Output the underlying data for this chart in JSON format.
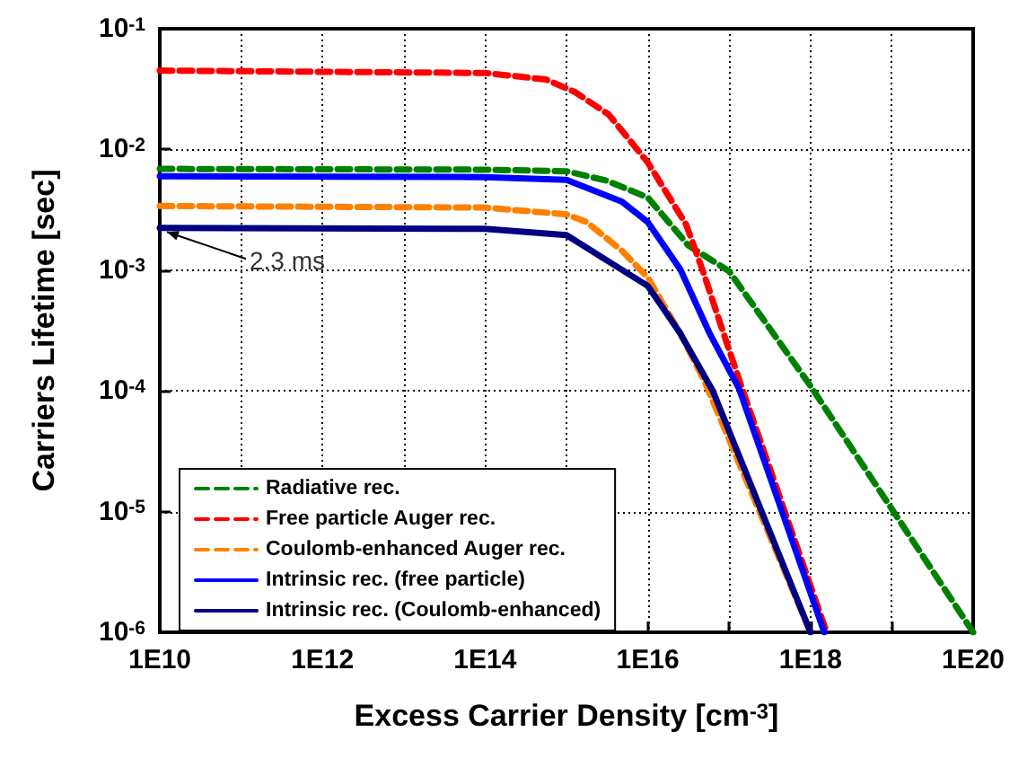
{
  "chart_data": {
    "type": "line",
    "xlabel": "Excess Carrier Density [cm$^{-3}$]",
    "ylabel": "Carriers Lifetime [sec]",
    "log": "xy",
    "xlim": [
      10000000000.0,
      1e+20
    ],
    "ylim": [
      1e-06,
      0.1
    ],
    "xticks": [
      {
        "value": 10000000000.0,
        "label": "1E10"
      },
      {
        "value": 100000000000.0,
        "label": null
      },
      {
        "value": 1000000000000.0,
        "label": "1E12"
      },
      {
        "value": 10000000000000.0,
        "label": null
      },
      {
        "value": 100000000000000.0,
        "label": "1E14"
      },
      {
        "value": 1000000000000000.0,
        "label": null
      },
      {
        "value": 1e+16,
        "label": "1E16"
      },
      {
        "value": 1e+17,
        "label": null
      },
      {
        "value": 1e+18,
        "label": "1E18"
      },
      {
        "value": 1e+19,
        "label": null
      },
      {
        "value": 1e+20,
        "label": "1E20"
      }
    ],
    "yticks": [
      {
        "value": 1e-06,
        "label": "10$^{-6}$"
      },
      {
        "value": 1e-05,
        "label": "10$^{-5}$"
      },
      {
        "value": 0.0001,
        "label": "10$^{-4}$"
      },
      {
        "value": 0.001,
        "label": "10$^{-3}$"
      },
      {
        "value": 0.01,
        "label": "10$^{-2}$"
      },
      {
        "value": 0.1,
        "label": "10$^{-1}$"
      }
    ],
    "grid": true,
    "legend": "bottom left",
    "marker": "none",
    "annotations": [
      {
        "text": "2.3 ms",
        "y": 0.0023
      }
    ],
    "series": [
      {
        "name": "Radiative rec.",
        "color": "#008000",
        "line_style": "dashed",
        "x": [
          10000000000.0,
          100000000000000.0,
          1000000000000000.0,
          3160000000000000.0,
          1e+16,
          3.16e+16,
          1e+17,
          1e+18,
          1e+19,
          1e+20
        ],
        "values": [
          0.0069,
          0.0068,
          0.0066,
          0.0055,
          0.004,
          0.0016,
          0.00098,
          0.00011,
          1.05e-05,
          1e-06
        ]
      },
      {
        "name": "Free particle Auger rec.",
        "color": "#ff0000",
        "line_style": "dashed",
        "x": [
          10000000000.0,
          100000000000000.0,
          560000000000000.0,
          1260000000000000.0,
          3300000000000000.0,
          6600000000000000.0,
          1e+16,
          2.95e+16,
          4.9e+16,
          7.9e+16,
          1.41e+17,
          1.58e+18
        ],
        "values": [
          0.045,
          0.043,
          0.038,
          0.03,
          0.0195,
          0.011,
          0.0078,
          0.0024,
          0.00093,
          0.00035,
          0.00011,
          1e-06
        ]
      },
      {
        "name": "Coulomb-enhanced Auger rec.",
        "color": "#ff8000",
        "line_style": "dashed",
        "x": [
          10000000000.0,
          100000000000000.0,
          1000000000000000.0,
          1780000000000000.0,
          4800000000000000.0,
          1e+16,
          2.5e+16,
          4.9e+16,
          1e+18
        ],
        "values": [
          0.0034,
          0.0033,
          0.0029,
          0.0025,
          0.00145,
          0.00087,
          0.0003,
          0.000123,
          1e-06
        ]
      },
      {
        "name": "Intrinsic rec. (free particle)",
        "color": "#0000ff",
        "line_style": "solid",
        "x": [
          10000000000.0,
          100000000000000.0,
          1000000000000000.0,
          4800000000000000.0,
          1e+16,
          2.5e+16,
          5.75e+16,
          1.32e+17,
          1.48e+18
        ],
        "values": [
          0.006,
          0.0059,
          0.0056,
          0.0037,
          0.0025,
          0.00102,
          0.0003,
          0.000105,
          1e-06
        ]
      },
      {
        "name": "Intrinsic rec. (Coulomb-enhanced)",
        "color": "#000080",
        "line_style": "solid",
        "x": [
          10000000000.0,
          100000000000000.0,
          1000000000000000.0,
          3500000000000000.0,
          1e+16,
          2.5e+16,
          6.3e+16,
          1e+18
        ],
        "values": [
          0.00224,
          0.0022,
          0.00195,
          0.00115,
          0.00074,
          0.0003,
          0.0001,
          1e-06
        ]
      }
    ]
  }
}
